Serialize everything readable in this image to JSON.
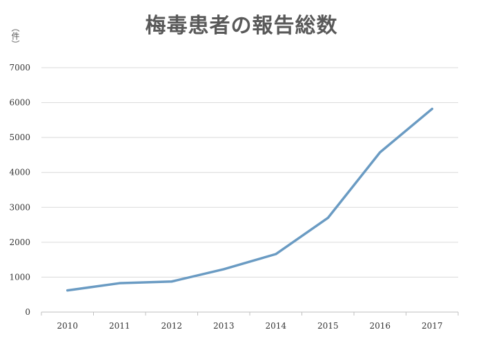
{
  "chart_data": {
    "type": "line",
    "title": "梅毒患者の報告総数",
    "ylabel": "（件）",
    "xlabel": "",
    "categories": [
      "2010",
      "2011",
      "2012",
      "2013",
      "2014",
      "2015",
      "2016",
      "2017"
    ],
    "series": [
      {
        "values": [
          621,
          827,
          875,
          1228,
          1661,
          2697,
          4575,
          5820
        ]
      }
    ],
    "ylim": [
      0,
      7000
    ],
    "yticks": [
      0,
      1000,
      2000,
      3000,
      4000,
      5000,
      6000,
      7000
    ],
    "grid": true,
    "legend": "none",
    "line_color": "#6a9bc3",
    "grid_color": "#d9d9d9",
    "axis_color": "#bfbfbf"
  }
}
